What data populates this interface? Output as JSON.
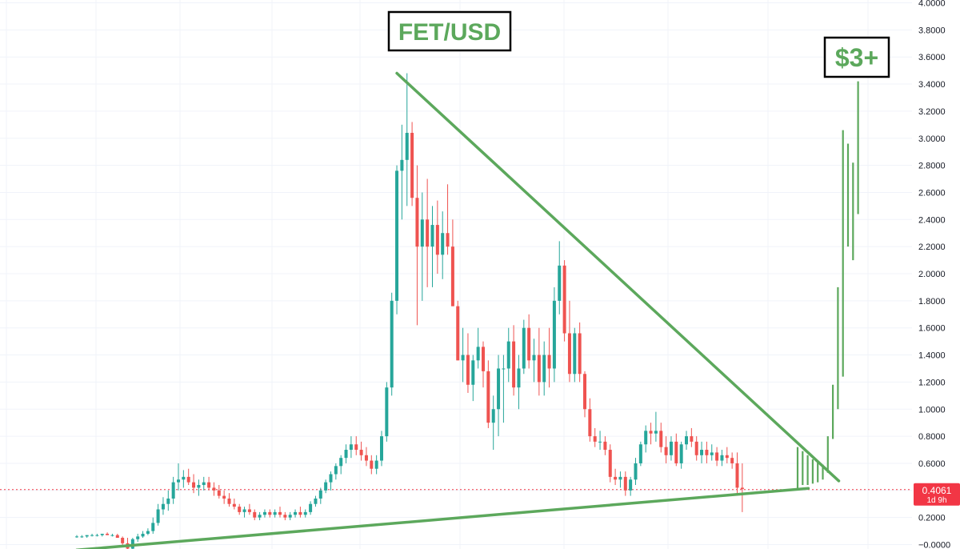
{
  "chart_data": {
    "type": "candlestick",
    "title": "FET/USD",
    "symbol": "FET/USD",
    "y_axis": {
      "side": "right",
      "ylim": [
        -0.05,
        4.0
      ],
      "ticks": [
        "4.0000",
        "3.8000",
        "3.6000",
        "3.4000",
        "3.2000",
        "3.0000",
        "2.8000",
        "2.6000",
        "2.4000",
        "2.2000",
        "2.0000",
        "1.8000",
        "1.6000",
        "1.4000",
        "1.2000",
        "1.0000",
        "0.8000",
        "0.6000",
        "0.4000",
        "0.2000",
        "−0.0000"
      ],
      "tick_values": [
        4.0,
        3.8,
        3.6,
        3.4,
        3.2,
        3.0,
        2.8,
        2.6,
        2.4,
        2.2,
        2.0,
        1.8,
        1.6,
        1.4,
        1.2,
        1.0,
        0.8,
        0.6,
        0.4,
        0.2,
        0.0
      ]
    },
    "grid": true,
    "colors": {
      "up": "#26a69a",
      "down": "#ef5350",
      "trendline": "#5ca85c",
      "annotation": "#5ca85c",
      "current_price": "#f23645"
    },
    "current_price": {
      "value": 0.4061,
      "label": "0.4061",
      "countdown": "1d 9h"
    },
    "annotations": [
      {
        "id": "title",
        "text": "FET/USD"
      },
      {
        "id": "target",
        "text": "$3+"
      }
    ],
    "trendlines": [
      {
        "name": "support",
        "from": {
          "index": 0,
          "price": -0.04
        },
        "to": {
          "index": 144,
          "price": 0.415
        }
      },
      {
        "name": "resistance",
        "from": {
          "index": 63,
          "price": 3.48
        },
        "to": {
          "index": 150,
          "price": 0.47
        }
      }
    ],
    "candles": [
      [
        0.06,
        0.07,
        0.05,
        0.06
      ],
      [
        0.06,
        0.07,
        0.05,
        0.06
      ],
      [
        0.06,
        0.07,
        0.05,
        0.07
      ],
      [
        0.07,
        0.08,
        0.06,
        0.07
      ],
      [
        0.07,
        0.08,
        0.06,
        0.07
      ],
      [
        0.07,
        0.08,
        0.06,
        0.08
      ],
      [
        0.08,
        0.09,
        0.07,
        0.07
      ],
      [
        0.07,
        0.08,
        0.06,
        0.07
      ],
      [
        0.07,
        0.08,
        0.05,
        0.05
      ],
      [
        0.05,
        0.06,
        -0.02,
        0.01
      ],
      [
        0.01,
        0.05,
        -0.04,
        -0.03
      ],
      [
        -0.03,
        0.05,
        -0.04,
        0.04
      ],
      [
        0.04,
        0.08,
        0.02,
        0.06
      ],
      [
        0.06,
        0.1,
        0.05,
        0.08
      ],
      [
        0.08,
        0.12,
        0.07,
        0.1
      ],
      [
        0.1,
        0.2,
        0.08,
        0.16
      ],
      [
        0.16,
        0.3,
        0.14,
        0.26
      ],
      [
        0.26,
        0.35,
        0.22,
        0.3
      ],
      [
        0.3,
        0.4,
        0.25,
        0.34
      ],
      [
        0.34,
        0.5,
        0.3,
        0.46
      ],
      [
        0.46,
        0.6,
        0.4,
        0.48
      ],
      [
        0.48,
        0.55,
        0.42,
        0.5
      ],
      [
        0.5,
        0.56,
        0.44,
        0.46
      ],
      [
        0.46,
        0.52,
        0.38,
        0.42
      ],
      [
        0.42,
        0.48,
        0.36,
        0.44
      ],
      [
        0.44,
        0.5,
        0.4,
        0.46
      ],
      [
        0.46,
        0.5,
        0.4,
        0.42
      ],
      [
        0.42,
        0.46,
        0.36,
        0.4
      ],
      [
        0.4,
        0.44,
        0.34,
        0.36
      ],
      [
        0.36,
        0.4,
        0.3,
        0.34
      ],
      [
        0.34,
        0.38,
        0.28,
        0.3
      ],
      [
        0.3,
        0.34,
        0.26,
        0.28
      ],
      [
        0.28,
        0.3,
        0.22,
        0.24
      ],
      [
        0.24,
        0.28,
        0.2,
        0.26
      ],
      [
        0.26,
        0.3,
        0.22,
        0.24
      ],
      [
        0.24,
        0.26,
        0.18,
        0.2
      ],
      [
        0.2,
        0.24,
        0.18,
        0.22
      ],
      [
        0.22,
        0.26,
        0.2,
        0.24
      ],
      [
        0.24,
        0.26,
        0.2,
        0.22
      ],
      [
        0.22,
        0.26,
        0.2,
        0.24
      ],
      [
        0.24,
        0.28,
        0.2,
        0.22
      ],
      [
        0.22,
        0.24,
        0.18,
        0.2
      ],
      [
        0.2,
        0.24,
        0.18,
        0.22
      ],
      [
        0.22,
        0.26,
        0.2,
        0.24
      ],
      [
        0.24,
        0.28,
        0.2,
        0.22
      ],
      [
        0.22,
        0.26,
        0.2,
        0.24
      ],
      [
        0.24,
        0.32,
        0.22,
        0.3
      ],
      [
        0.3,
        0.36,
        0.28,
        0.34
      ],
      [
        0.34,
        0.42,
        0.3,
        0.4
      ],
      [
        0.4,
        0.48,
        0.38,
        0.46
      ],
      [
        0.46,
        0.54,
        0.4,
        0.52
      ],
      [
        0.52,
        0.6,
        0.48,
        0.58
      ],
      [
        0.58,
        0.66,
        0.52,
        0.64
      ],
      [
        0.64,
        0.74,
        0.6,
        0.7
      ],
      [
        0.7,
        0.8,
        0.64,
        0.74
      ],
      [
        0.74,
        0.8,
        0.66,
        0.7
      ],
      [
        0.7,
        0.76,
        0.62,
        0.66
      ],
      [
        0.66,
        0.72,
        0.58,
        0.62
      ],
      [
        0.62,
        0.66,
        0.52,
        0.56
      ],
      [
        0.56,
        0.66,
        0.52,
        0.62
      ],
      [
        0.62,
        0.84,
        0.58,
        0.8
      ],
      [
        0.8,
        1.2,
        0.76,
        1.16
      ],
      [
        1.16,
        1.86,
        1.1,
        1.8
      ],
      [
        1.8,
        2.8,
        1.7,
        2.76
      ],
      [
        2.76,
        3.1,
        2.4,
        2.84
      ],
      [
        2.84,
        3.48,
        2.5,
        3.04
      ],
      [
        3.04,
        3.12,
        2.5,
        2.56
      ],
      [
        2.56,
        2.8,
        1.62,
        2.2
      ],
      [
        2.2,
        2.6,
        1.8,
        2.4
      ],
      [
        2.4,
        2.7,
        1.9,
        2.2
      ],
      [
        2.2,
        2.5,
        1.9,
        2.36
      ],
      [
        2.36,
        2.54,
        2.0,
        2.14
      ],
      [
        2.14,
        2.46,
        1.96,
        2.3
      ],
      [
        2.3,
        2.66,
        2.14,
        2.2
      ],
      [
        2.2,
        2.4,
        1.76,
        1.76
      ],
      [
        1.76,
        1.8,
        1.36,
        1.36
      ],
      [
        1.36,
        1.6,
        1.2,
        1.4
      ],
      [
        1.4,
        1.56,
        1.12,
        1.18
      ],
      [
        1.18,
        1.4,
        1.06,
        1.36
      ],
      [
        1.36,
        1.6,
        1.3,
        1.46
      ],
      [
        1.46,
        1.5,
        1.16,
        1.28
      ],
      [
        1.28,
        1.36,
        0.86,
        0.9
      ],
      [
        0.9,
        1.1,
        0.7,
        1.0
      ],
      [
        1.0,
        1.4,
        0.8,
        1.3
      ],
      [
        1.3,
        1.4,
        0.9,
        1.3
      ],
      [
        1.3,
        1.6,
        1.2,
        1.5
      ],
      [
        1.5,
        1.62,
        1.1,
        1.16
      ],
      [
        1.16,
        1.4,
        1.0,
        1.3
      ],
      [
        1.3,
        1.66,
        1.26,
        1.6
      ],
      [
        1.6,
        1.7,
        1.3,
        1.36
      ],
      [
        1.36,
        1.52,
        1.2,
        1.4
      ],
      [
        1.4,
        1.6,
        1.1,
        1.2
      ],
      [
        1.2,
        1.5,
        1.1,
        1.4
      ],
      [
        1.4,
        1.6,
        1.16,
        1.3
      ],
      [
        1.3,
        1.9,
        1.2,
        1.8
      ],
      [
        1.8,
        2.24,
        1.7,
        2.06
      ],
      [
        2.06,
        2.1,
        1.5,
        1.56
      ],
      [
        1.56,
        1.8,
        1.2,
        1.26
      ],
      [
        1.26,
        1.6,
        1.2,
        1.56
      ],
      [
        1.56,
        1.64,
        1.2,
        1.26
      ],
      [
        1.26,
        1.28,
        0.94,
        1.0
      ],
      [
        1.0,
        1.08,
        0.76,
        0.8
      ],
      [
        0.8,
        0.86,
        0.72,
        0.76
      ],
      [
        0.76,
        0.84,
        0.7,
        0.76
      ],
      [
        0.76,
        0.8,
        0.66,
        0.7
      ],
      [
        0.7,
        0.74,
        0.46,
        0.5
      ],
      [
        0.5,
        0.56,
        0.44,
        0.48
      ],
      [
        0.48,
        0.54,
        0.42,
        0.5
      ],
      [
        0.5,
        0.54,
        0.36,
        0.4
      ],
      [
        0.4,
        0.5,
        0.36,
        0.48
      ],
      [
        0.48,
        0.64,
        0.44,
        0.6
      ],
      [
        0.6,
        0.76,
        0.58,
        0.74
      ],
      [
        0.74,
        0.88,
        0.68,
        0.84
      ],
      [
        0.84,
        0.9,
        0.74,
        0.82
      ],
      [
        0.82,
        0.98,
        0.76,
        0.84
      ],
      [
        0.84,
        0.9,
        0.68,
        0.72
      ],
      [
        0.72,
        0.8,
        0.6,
        0.66
      ],
      [
        0.66,
        0.8,
        0.62,
        0.76
      ],
      [
        0.76,
        0.82,
        0.58,
        0.6
      ],
      [
        0.6,
        0.76,
        0.56,
        0.74
      ],
      [
        0.74,
        0.84,
        0.7,
        0.8
      ],
      [
        0.8,
        0.86,
        0.72,
        0.76
      ],
      [
        0.76,
        0.8,
        0.62,
        0.66
      ],
      [
        0.66,
        0.76,
        0.6,
        0.7
      ],
      [
        0.7,
        0.76,
        0.6,
        0.66
      ],
      [
        0.66,
        0.74,
        0.62,
        0.68
      ],
      [
        0.68,
        0.72,
        0.58,
        0.62
      ],
      [
        0.62,
        0.7,
        0.58,
        0.66
      ],
      [
        0.66,
        0.72,
        0.6,
        0.64
      ],
      [
        0.64,
        0.68,
        0.56,
        0.6
      ],
      [
        0.6,
        0.68,
        0.38,
        0.42
      ],
      [
        0.42,
        0.6,
        0.24,
        0.41
      ]
    ],
    "projection": [
      [
        0.41,
        0.72
      ],
      [
        0.44,
        0.69
      ],
      [
        0.44,
        0.66
      ],
      [
        0.45,
        0.63
      ],
      [
        0.46,
        0.61
      ],
      [
        0.48,
        0.59
      ],
      [
        0.53,
        0.8
      ],
      [
        0.78,
        1.18
      ],
      [
        1.0,
        1.9
      ],
      [
        1.24,
        3.06
      ],
      [
        2.2,
        2.96
      ],
      [
        2.1,
        2.82
      ],
      [
        2.44,
        3.42
      ]
    ]
  }
}
